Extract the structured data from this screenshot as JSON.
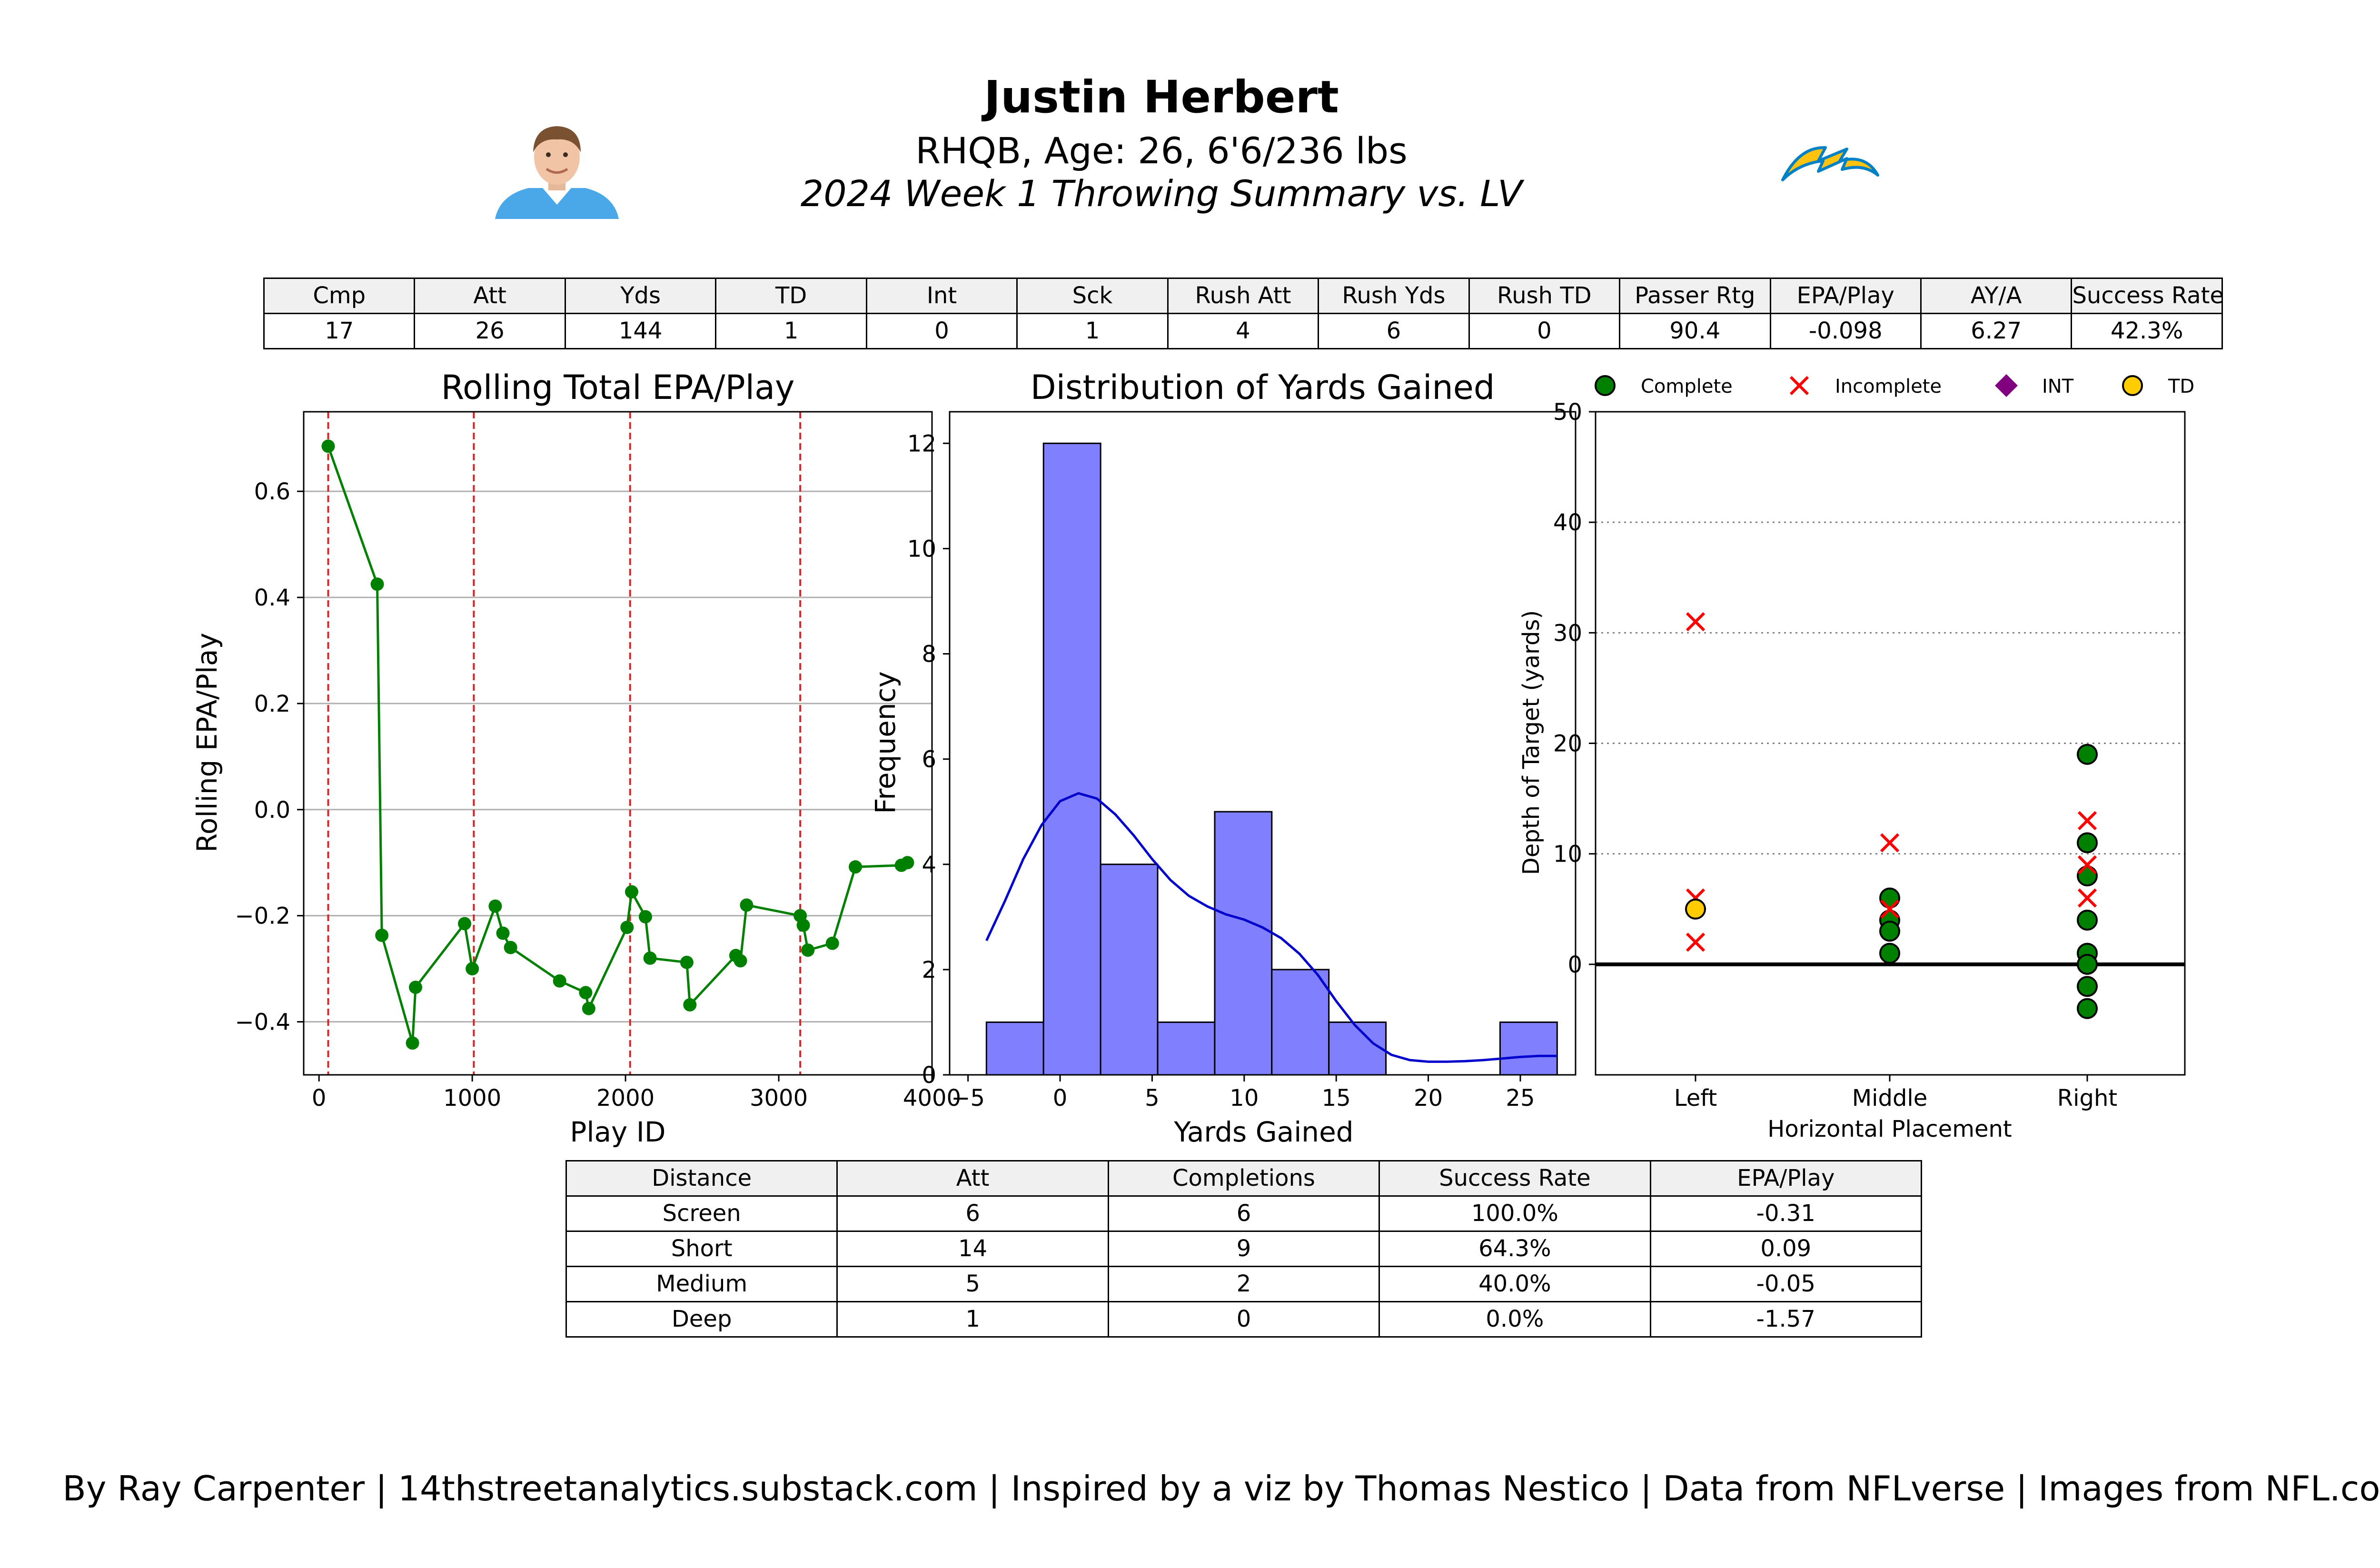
{
  "header": {
    "player_name": "Justin Herbert",
    "bio": "RHQB, Age: 26, 6'6/236 lbs",
    "summary": "2024 Week 1 Throwing Summary vs. LV"
  },
  "colors": {
    "epa_line": "#008000",
    "event_line": "#d62728",
    "hist_fill": "#8080ff",
    "kde_line": "#0000cc",
    "complete": "#008000",
    "incomplete": "#ff0000",
    "int": "#800080",
    "td": "#ffcc00",
    "team_blue": "#0080c6",
    "team_gold": "#ffc20e"
  },
  "icons": {
    "player_headshot": "player-headshot",
    "team_logo": "lightning-bolt-logo"
  },
  "stats_table": {
    "headers": [
      "Cmp",
      "Att",
      "Yds",
      "TD",
      "Int",
      "Sck",
      "Rush Att",
      "Rush Yds",
      "Rush TD",
      "Passer Rtg",
      "EPA/Play",
      "AY/A",
      "Success Rate"
    ],
    "values": [
      "17",
      "26",
      "144",
      "1",
      "0",
      "1",
      "4",
      "6",
      "0",
      "90.4",
      "-0.098",
      "6.27",
      "42.3%"
    ]
  },
  "distance_table": {
    "headers": [
      "Distance",
      "Att",
      "Completions",
      "Success Rate",
      "EPA/Play"
    ],
    "rows": [
      [
        "Screen",
        "6",
        "6",
        "100.0%",
        "-0.31"
      ],
      [
        "Short",
        "14",
        "9",
        "64.3%",
        "0.09"
      ],
      [
        "Medium",
        "5",
        "2",
        "40.0%",
        "-0.05"
      ],
      [
        "Deep",
        "1",
        "0",
        "0.0%",
        "-1.57"
      ]
    ]
  },
  "footer": "By Ray Carpenter | 14thstreetanalytics.substack.com | Inspired by a viz by Thomas Nestico | Data from NFLverse | Images from NFL.com",
  "chart_data": [
    {
      "type": "line",
      "title": "Rolling Total EPA/Play",
      "xlabel": "Play ID",
      "ylabel": "Rolling EPA/Play",
      "xlim": [
        -100,
        4000
      ],
      "ylim": [
        -0.5,
        0.75
      ],
      "xticks": [
        0,
        1000,
        2000,
        3000,
        4000
      ],
      "xtick_labels": [
        "0",
        "1000",
        "2000",
        "3000",
        "4000"
      ],
      "yticks": [
        -0.4,
        -0.2,
        0.0,
        0.2,
        0.4,
        0.6
      ],
      "ytick_labels": [
        "−0.4",
        "−0.2",
        "0.0",
        "0.2",
        "0.4",
        "0.6"
      ],
      "grid": "horizontal",
      "vlines": [
        60,
        1010,
        2030,
        3140
      ],
      "x": [
        60,
        380,
        410,
        610,
        630,
        950,
        1000,
        1150,
        1200,
        1250,
        1570,
        1740,
        1760,
        2010,
        2040,
        2130,
        2160,
        2400,
        2420,
        2720,
        2750,
        2790,
        3140,
        3160,
        3190,
        3350,
        3500,
        3800,
        3840
      ],
      "y": [
        0.685,
        0.425,
        -0.237,
        -0.44,
        -0.335,
        -0.215,
        -0.3,
        -0.182,
        -0.233,
        -0.26,
        -0.323,
        -0.345,
        -0.375,
        -0.222,
        -0.155,
        -0.202,
        -0.28,
        -0.288,
        -0.368,
        -0.275,
        -0.285,
        -0.18,
        -0.2,
        -0.218,
        -0.265,
        -0.252,
        -0.108,
        -0.105,
        -0.1
      ]
    },
    {
      "type": "bar",
      "title": "Distribution of Yards Gained",
      "xlabel": "Yards Gained",
      "ylabel": "Frequency",
      "xlim": [
        -6,
        28
      ],
      "ylim": [
        0,
        12.6
      ],
      "xticks": [
        -5,
        0,
        5,
        10,
        15,
        20,
        25
      ],
      "xtick_labels": [
        "−5",
        "0",
        "5",
        "10",
        "15",
        "20",
        "25"
      ],
      "yticks": [
        0,
        2,
        4,
        6,
        8,
        10,
        12
      ],
      "ytick_labels": [
        "0",
        "2",
        "4",
        "6",
        "8",
        "10",
        "12"
      ],
      "bin_edges": [
        -4,
        -0.9,
        2.2,
        5.3,
        8.4,
        11.5,
        14.6,
        17.7,
        20.8,
        23.9,
        27
      ],
      "counts": [
        1,
        12,
        4,
        1,
        5,
        2,
        1,
        0,
        0,
        1
      ],
      "kde_x": [
        -4,
        -3,
        -2,
        -1,
        0,
        1,
        2,
        3,
        4,
        5,
        6,
        7,
        8,
        9,
        10,
        11,
        12,
        13,
        14,
        15,
        16,
        17,
        18,
        19,
        20,
        21,
        22,
        23,
        24,
        25,
        26,
        27
      ],
      "kde_y": [
        2.55,
        3.3,
        4.1,
        4.75,
        5.2,
        5.35,
        5.25,
        4.95,
        4.55,
        4.1,
        3.7,
        3.4,
        3.2,
        3.05,
        2.95,
        2.8,
        2.6,
        2.3,
        1.9,
        1.4,
        0.95,
        0.6,
        0.38,
        0.28,
        0.25,
        0.25,
        0.26,
        0.28,
        0.31,
        0.34,
        0.36,
        0.36
      ]
    },
    {
      "type": "scatter",
      "title": "",
      "xlabel": "Horizontal Placement",
      "ylabel": "Depth of Target (yards)",
      "categories": [
        "Left",
        "Middle",
        "Right"
      ],
      "ylim": [
        -10,
        50
      ],
      "yticks": [
        0,
        10,
        20,
        30,
        40,
        50
      ],
      "ytick_labels": [
        "0",
        "10",
        "20",
        "30",
        "40",
        "50"
      ],
      "grid": "horizontal dotted",
      "legend_position": "top",
      "legend": [
        "Complete",
        "Incomplete",
        "INT",
        "TD"
      ],
      "series": [
        {
          "name": "Complete",
          "marker": "circle",
          "points": [
            [
              "Middle",
              6
            ],
            [
              "Middle",
              4
            ],
            [
              "Middle",
              3
            ],
            [
              "Middle",
              1
            ],
            [
              "Right",
              19
            ],
            [
              "Right",
              11
            ],
            [
              "Right",
              8
            ],
            [
              "Right",
              4
            ],
            [
              "Right",
              1
            ],
            [
              "Right",
              0
            ],
            [
              "Right",
              -2
            ],
            [
              "Right",
              -4
            ]
          ]
        },
        {
          "name": "Incomplete",
          "marker": "x",
          "points": [
            [
              "Left",
              31
            ],
            [
              "Left",
              6
            ],
            [
              "Left",
              2
            ],
            [
              "Middle",
              11
            ],
            [
              "Middle",
              5
            ],
            [
              "Right",
              13
            ],
            [
              "Right",
              9
            ],
            [
              "Right",
              6
            ]
          ]
        },
        {
          "name": "INT",
          "marker": "diamond",
          "points": []
        },
        {
          "name": "TD",
          "marker": "circle",
          "points": [
            [
              "Left",
              5
            ]
          ]
        }
      ]
    }
  ]
}
